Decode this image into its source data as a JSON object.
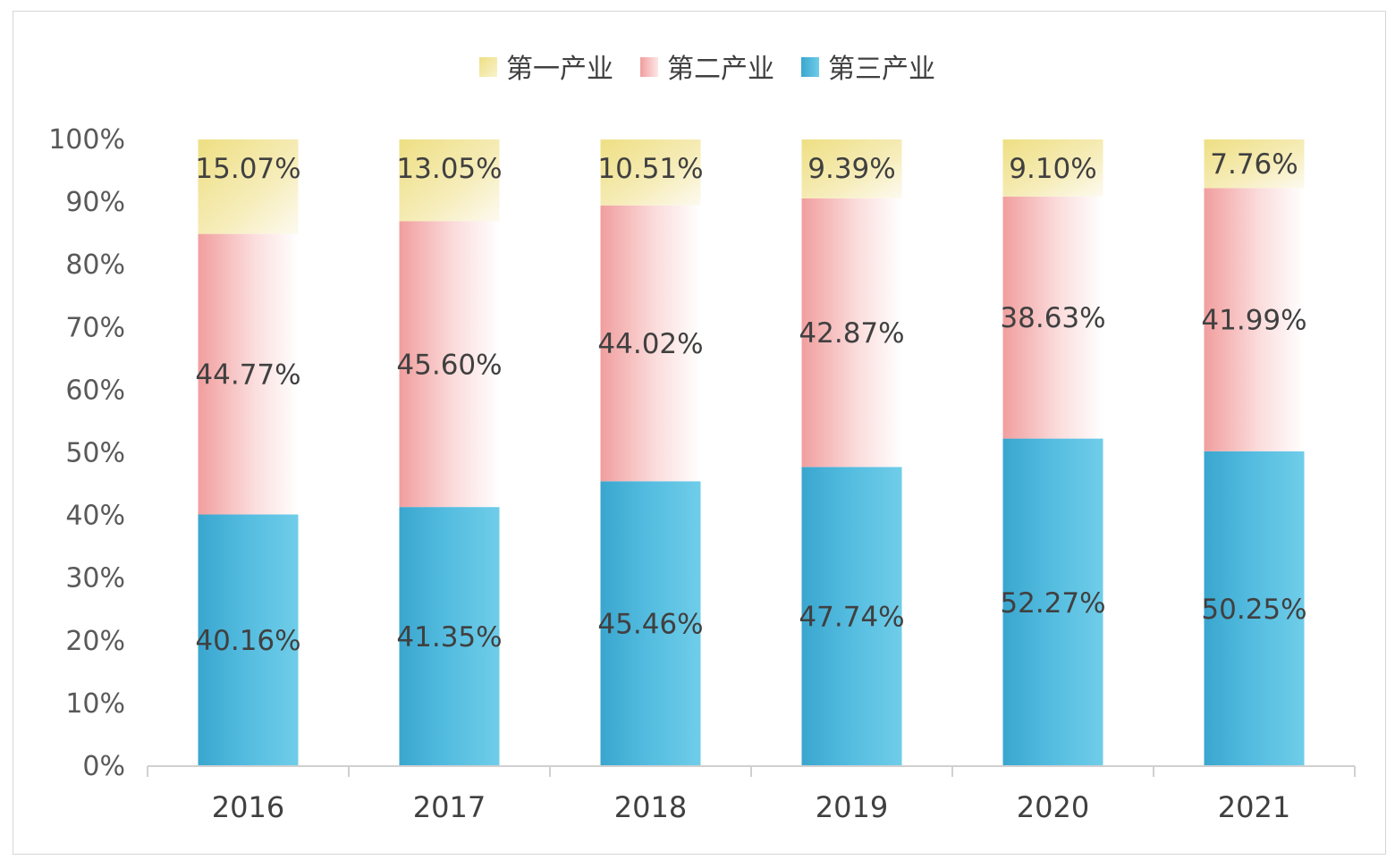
{
  "chart_data": {
    "type": "bar",
    "stacked": true,
    "percent_stacked": true,
    "categories": [
      "2016",
      "2017",
      "2018",
      "2019",
      "2020",
      "2021"
    ],
    "series": [
      {
        "name": "第三产业",
        "values": [
          40.16,
          41.35,
          45.46,
          47.74,
          52.27,
          50.25
        ],
        "labels": [
          "40.16%",
          "41.35%",
          "45.46%",
          "47.74%",
          "52.27%",
          "50.25%"
        ],
        "color": "#4bb8dc"
      },
      {
        "name": "第二产业",
        "values": [
          44.77,
          45.6,
          44.02,
          42.87,
          38.63,
          41.99
        ],
        "labels": [
          "44.77%",
          "45.60%",
          "44.02%",
          "42.87%",
          "38.63%",
          "41.99%"
        ],
        "color": "#f4a7a7"
      },
      {
        "name": "第一产业",
        "values": [
          15.07,
          13.05,
          10.51,
          9.39,
          9.1,
          7.76
        ],
        "labels": [
          "15.07%",
          "13.05%",
          "10.51%",
          "9.39%",
          "9.10%",
          "7.76%"
        ],
        "color": "#f1e38a"
      }
    ],
    "legend": {
      "position": "top",
      "order": [
        "第一产业",
        "第二产业",
        "第三产业"
      ]
    },
    "ylim": [
      0,
      100
    ],
    "yticks": [
      "0%",
      "10%",
      "20%",
      "30%",
      "40%",
      "50%",
      "60%",
      "70%",
      "80%",
      "90%",
      "100%"
    ],
    "grid": false
  }
}
